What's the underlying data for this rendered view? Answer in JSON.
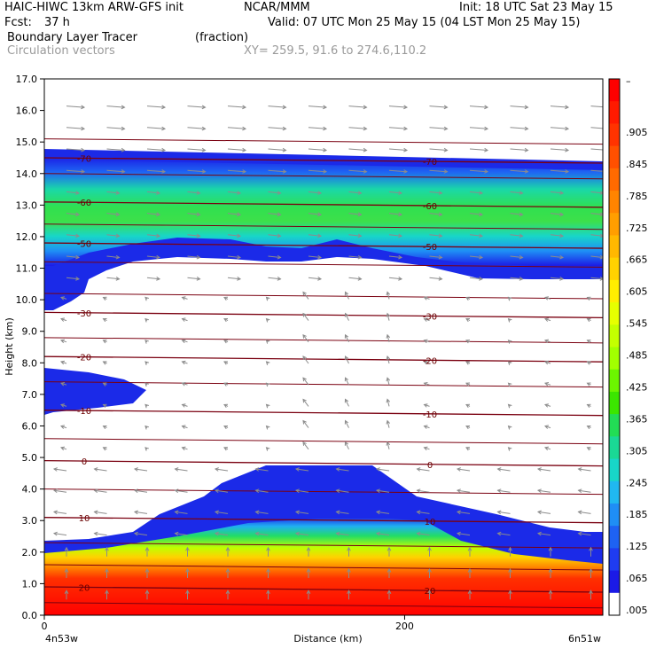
{
  "header": {
    "line1_left": "HAIC-HIWC 13km ARW-GFS init",
    "line1_mid": "NCAR/MMM",
    "line1_right": "Init: 18 UTC Sat 23 May 15",
    "fcst_label": "Fcst:",
    "fcst_value": "37 h",
    "valid": "Valid: 07 UTC Mon 25 May 15 (04 LST Mon 25 May 15)",
    "field_name": "Boundary Layer Tracer",
    "field_units": "(fraction)",
    "vectors_label": "Circulation vectors",
    "xy_label": "XY= 259.5, 91.6 to 274.6,110.2"
  },
  "chart_data": {
    "type": "heatmap",
    "title": "Boundary Layer Tracer",
    "ylabel": "Height (km)",
    "xlabel": "Distance (km)",
    "ylim": [
      0,
      17
    ],
    "xlim": [
      0,
      310
    ],
    "y_ticks": [
      "0.0",
      "1.0",
      "2.0",
      "3.0",
      "4.0",
      "5.0",
      "6.0",
      "7.0",
      "8.0",
      "9.0",
      "10.0",
      "11.0",
      "12.0",
      "13.0",
      "14.0",
      "15.0",
      "16.0",
      "17.0"
    ],
    "x_ticks": [
      {
        "value": 0,
        "label": "0"
      },
      {
        "value": 200,
        "label": "200"
      }
    ],
    "x_endpoint_labels": [
      "4n53w",
      "6n51w"
    ],
    "colorbar": {
      "top_label": "–",
      "labels": [
        ".905",
        ".845",
        ".785",
        ".725",
        ".665",
        ".605",
        ".545",
        ".485",
        ".425",
        ".365",
        ".305",
        ".245",
        ".185",
        ".125",
        ".065",
        ".005"
      ],
      "colors": [
        "#fe0000",
        "#ff1a00",
        "#ff3300",
        "#ff5000",
        "#ff6a00",
        "#ff8400",
        "#ff9e00",
        "#ffb800",
        "#ffd200",
        "#ffee00",
        "#e6ff00",
        "#c4ff00",
        "#a2ff00",
        "#6cf500",
        "#3be600",
        "#22dd55",
        "#1ad895",
        "#18d6c8",
        "#20b8f0",
        "#1f8ef5",
        "#1e62f3",
        "#1f3cf0",
        "#1b1ae6"
      ],
      "lowest_color": "#ffffff"
    },
    "fields": {
      "tracer": {
        "surface_layer": [
          0,
          2.0
        ],
        "upper_layer": [
          11.0,
          14.8
        ]
      },
      "temperature_isotherms": [
        {
          "label": "-70",
          "y": 14.5
        },
        {
          "label": "-60",
          "y": 13.1
        },
        {
          "label": "-50",
          "y": 11.8
        },
        {
          "label": "-30",
          "y": 9.6
        },
        {
          "label": "-20",
          "y": 8.2
        },
        {
          "label": "-10",
          "y": 6.5
        },
        {
          "label": "0",
          "y": 4.9
        },
        {
          "label": "10",
          "y": 3.1
        },
        {
          "label": "20",
          "y": 0.9
        }
      ]
    }
  }
}
